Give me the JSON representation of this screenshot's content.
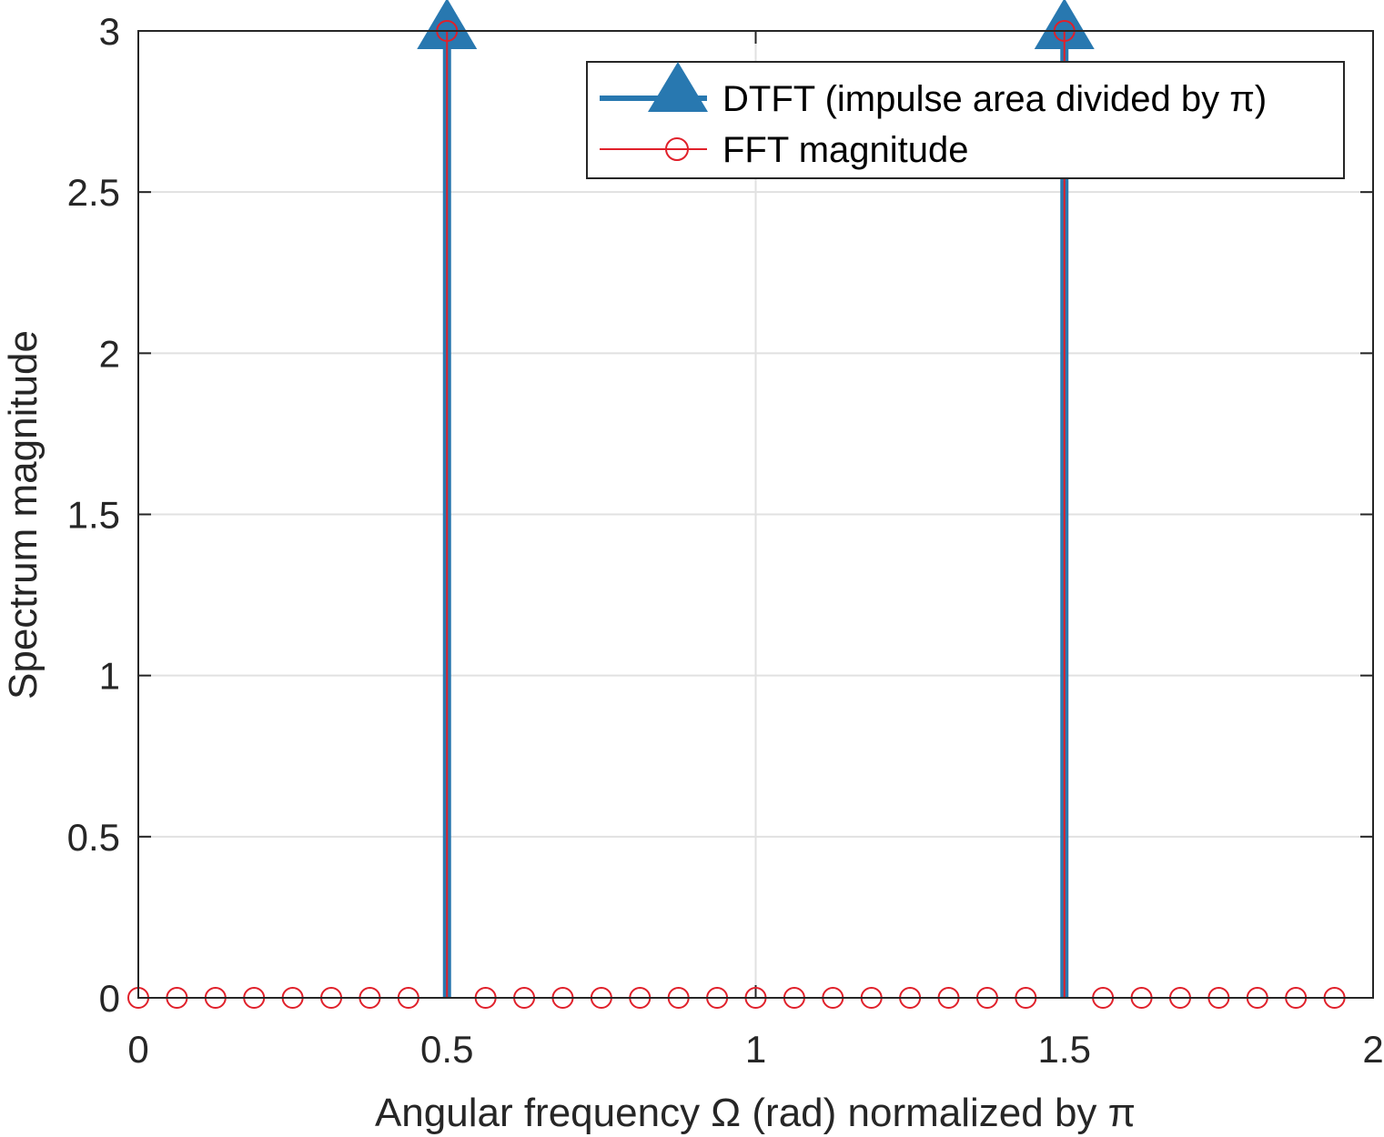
{
  "chart_data": {
    "type": "stem",
    "xlabel": "Angular frequency Ω (rad) normalized by π",
    "ylabel": "Spectrum magnitude",
    "xlim": [
      0,
      2
    ],
    "ylim": [
      0,
      3
    ],
    "xticks": [
      0,
      0.5,
      1,
      1.5,
      2
    ],
    "xtick_labels": [
      "0",
      "0.5",
      "1",
      "1.5",
      "2"
    ],
    "yticks": [
      0,
      0.5,
      1,
      1.5,
      2,
      2.5,
      3
    ],
    "ytick_labels": [
      "0",
      "0.5",
      "1",
      "1.5",
      "2",
      "2.5",
      "3"
    ],
    "grid": true,
    "legend_position": "top-right",
    "series": [
      {
        "name": "DTFT (impulse area divided by π)",
        "color": "#2878b0",
        "marker": "triangle",
        "x": [
          0.5,
          1.5
        ],
        "y": [
          3,
          3
        ]
      },
      {
        "name": "FFT magnitude",
        "color": "#e0202a",
        "marker": "circle",
        "x": [
          0,
          0.0625,
          0.125,
          0.1875,
          0.25,
          0.3125,
          0.375,
          0.4375,
          0.5,
          0.5625,
          0.625,
          0.6875,
          0.75,
          0.8125,
          0.875,
          0.9375,
          1,
          1.0625,
          1.125,
          1.1875,
          1.25,
          1.3125,
          1.375,
          1.4375,
          1.5,
          1.5625,
          1.625,
          1.6875,
          1.75,
          1.8125,
          1.875,
          1.9375
        ],
        "y": [
          0,
          0,
          0,
          0,
          0,
          0,
          0,
          0,
          3,
          0,
          0,
          0,
          0,
          0,
          0,
          0,
          0,
          0,
          0,
          0,
          0,
          0,
          0,
          0,
          3,
          0,
          0,
          0,
          0,
          0,
          0,
          0
        ]
      }
    ]
  }
}
